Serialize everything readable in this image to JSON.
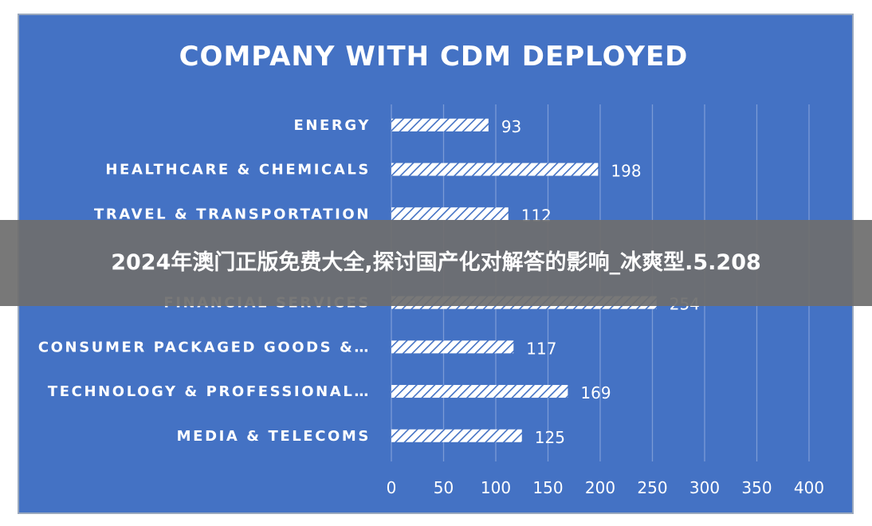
{
  "chart_data": {
    "type": "bar",
    "orientation": "horizontal",
    "title": "COMPANY WITH CDM DEPLOYED",
    "categories": [
      "ENERGY",
      "HEALTHCARE & CHEMICALS",
      "TRAVEL & TRANSPORTATION",
      "",
      "FINANCIAL SERVICES",
      "CONSUMER PACKAGED GOODS &…",
      "TECHNOLOGY & PROFESSIONAL…",
      "MEDIA & TELECOMS"
    ],
    "values": [
      93,
      198,
      112,
      null,
      254,
      117,
      169,
      125
    ],
    "value_labels": [
      "93",
      "198",
      "112",
      "",
      "254",
      "117",
      "169",
      "125"
    ],
    "xticks": [
      "0",
      "50",
      "100",
      "150",
      "200",
      "250",
      "300",
      "350",
      "400"
    ],
    "xlim": [
      0,
      400
    ],
    "grid": "vertical",
    "legend": "none",
    "colors": {
      "background": "#4472c4",
      "bar_fill": "#ffffff",
      "bar_hatch": "#4472c4",
      "grid": "#7b9bd6",
      "text": "#ffffff"
    }
  },
  "overlay": {
    "text": "2024年澳门正版免费大全,探讨国产化对解答的影响_冰爽型.5.208",
    "color": "#6e6e6e"
  }
}
